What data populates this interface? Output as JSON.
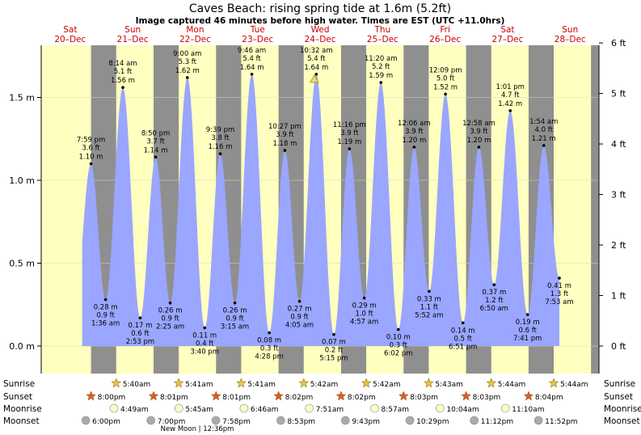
{
  "title": "Caves Beach: rising  spring tide at 1.6m (5.2ft)",
  "subtitle": "Image captured 46 minutes before high water. Times are EST (UTC +11.0hrs)",
  "chart_data": {
    "type": "line",
    "x_axis": "time (EST)",
    "y_axis_left": {
      "unit": "m",
      "ticks": [
        0.0,
        0.5,
        1.0,
        1.5
      ],
      "tick_labels": [
        "0.0 m",
        "0.5 m",
        "1.0 m",
        "1.5 m"
      ],
      "range": [
        -0.1,
        1.8
      ]
    },
    "y_axis_right": {
      "unit": "ft",
      "ticks": [
        0,
        1,
        2,
        3,
        4,
        5,
        6
      ],
      "tick_labels": [
        "0 ft",
        "1 ft",
        "2 ft",
        "3 ft",
        "4 ft",
        "5 ft",
        "6 ft"
      ]
    },
    "days": [
      {
        "dow": "Sat",
        "date": "20–Dec"
      },
      {
        "dow": "Sun",
        "date": "21–Dec"
      },
      {
        "dow": "Mon",
        "date": "22–Dec"
      },
      {
        "dow": "Tue",
        "date": "23–Dec"
      },
      {
        "dow": "Wed",
        "date": "24–Dec"
      },
      {
        "dow": "Thu",
        "date": "25–Dec"
      },
      {
        "dow": "Fri",
        "date": "26–Dec"
      },
      {
        "dow": "Sat",
        "date": "27–Dec"
      },
      {
        "dow": "Sun",
        "date": "28–Dec"
      }
    ],
    "tides": [
      {
        "type": "high",
        "time": "7:59 pm",
        "ft": "3.6 ft",
        "m": 1.1,
        "m_label": "1.10 m"
      },
      {
        "type": "low",
        "time": "1:36 am",
        "ft": "0.9 ft",
        "m": 0.28,
        "m_label": "0.28 m"
      },
      {
        "type": "high",
        "time": "8:14 am",
        "ft": "5.1 ft",
        "m": 1.56,
        "m_label": "1.56 m"
      },
      {
        "type": "low",
        "time": "2:53 pm",
        "ft": "0.6 ft",
        "m": 0.17,
        "m_label": "0.17 m"
      },
      {
        "type": "high",
        "time": "8:50 pm",
        "ft": "3.7 ft",
        "m": 1.14,
        "m_label": "1.14 m"
      },
      {
        "type": "low",
        "time": "2:25 am",
        "ft": "0.9 ft",
        "m": 0.26,
        "m_label": "0.26 m"
      },
      {
        "type": "high",
        "time": "9:00 am",
        "ft": "5.3 ft",
        "m": 1.62,
        "m_label": "1.62 m"
      },
      {
        "type": "low",
        "time": "3:40 pm",
        "ft": "0.4 ft",
        "m": 0.11,
        "m_label": "0.11 m"
      },
      {
        "type": "high",
        "time": "9:39 pm",
        "ft": "3.8 ft",
        "m": 1.16,
        "m_label": "1.16 m"
      },
      {
        "type": "low",
        "time": "3:15 am",
        "ft": "0.9 ft",
        "m": 0.26,
        "m_label": "0.26 m"
      },
      {
        "type": "high",
        "time": "9:46 am",
        "ft": "5.4 ft",
        "m": 1.64,
        "m_label": "1.64 m"
      },
      {
        "type": "low",
        "time": "4:28 pm",
        "ft": "0.3 ft",
        "m": 0.08,
        "m_label": "0.08 m"
      },
      {
        "type": "high",
        "time": "10:27 pm",
        "ft": "3.9 ft",
        "m": 1.18,
        "m_label": "1.18 m"
      },
      {
        "type": "low",
        "time": "4:05 am",
        "ft": "0.9 ft",
        "m": 0.27,
        "m_label": "0.27 m"
      },
      {
        "type": "high",
        "time": "10:32 am",
        "ft": "5.4 ft",
        "m": 1.64,
        "m_label": "1.64 m"
      },
      {
        "type": "low",
        "time": "5:15 pm",
        "ft": "0.2 ft",
        "m": 0.07,
        "m_label": "0.07 m"
      },
      {
        "type": "high",
        "time": "11:16 pm",
        "ft": "3.9 ft",
        "m": 1.19,
        "m_label": "1.19 m"
      },
      {
        "type": "low",
        "time": "4:57 am",
        "ft": "1.0 ft",
        "m": 0.29,
        "m_label": "0.29 m"
      },
      {
        "type": "high",
        "time": "11:20 am",
        "ft": "5.2 ft",
        "m": 1.59,
        "m_label": "1.59 m"
      },
      {
        "type": "low",
        "time": "6:02 pm",
        "ft": "0.3 ft",
        "m": 0.1,
        "m_label": "0.10 m"
      },
      {
        "type": "high",
        "time": "12:06 am",
        "ft": "3.9 ft",
        "m": 1.2,
        "m_label": "1.20 m"
      },
      {
        "type": "low",
        "time": "5:52 am",
        "ft": "1.1 ft",
        "m": 0.33,
        "m_label": "0.33 m"
      },
      {
        "type": "high",
        "time": "12:09 pm",
        "ft": "5.0 ft",
        "m": 1.52,
        "m_label": "1.52 m"
      },
      {
        "type": "low",
        "time": "6:51 pm",
        "ft": "0.5 ft",
        "m": 0.14,
        "m_label": "0.14 m"
      },
      {
        "type": "high",
        "time": "12:58 am",
        "ft": "3.9 ft",
        "m": 1.2,
        "m_label": "1.20 m"
      },
      {
        "type": "low",
        "time": "6:50 am",
        "ft": "1.2 ft",
        "m": 0.37,
        "m_label": "0.37 m"
      },
      {
        "type": "high",
        "time": "1:01 pm",
        "ft": "4.7 ft",
        "m": 1.42,
        "m_label": "1.42 m"
      },
      {
        "type": "low",
        "time": "7:41 pm",
        "ft": "0.6 ft",
        "m": 0.19,
        "m_label": "0.19 m"
      },
      {
        "type": "high",
        "time": "1:54 am",
        "ft": "4.0 ft",
        "m": 1.21,
        "m_label": "1.21 m"
      },
      {
        "type": "low",
        "time": "7:53 am",
        "ft": "1.3 ft",
        "m": 0.41,
        "m_label": "0.41 m"
      }
    ],
    "sunrise": [
      "5:40am",
      "5:41am",
      "5:41am",
      "5:42am",
      "5:42am",
      "5:43am",
      "5:44am",
      "5:44am"
    ],
    "sunset": [
      "8:00pm",
      "8:01pm",
      "8:01pm",
      "8:02pm",
      "8:02pm",
      "8:03pm",
      "8:03pm",
      "8:04pm"
    ],
    "moonrise": [
      "4:49am",
      "5:45am",
      "6:46am",
      "7:51am",
      "8:57am",
      "10:04am",
      "11:10am"
    ],
    "moonset": [
      "6:00pm",
      "7:00pm",
      "7:58pm",
      "8:53pm",
      "9:43pm",
      "10:29pm",
      "11:12pm",
      "11:52pm"
    ],
    "moon_phase": "New Moon | 12:36pm",
    "row_labels": {
      "sunrise": "Sunrise",
      "sunset": "Sunset",
      "moonrise": "Moonrise",
      "moonset": "Moonset"
    },
    "colors": {
      "water": "#9aa6ff",
      "day": "#ffffc0",
      "night": "#8f8f8f",
      "day_label": "#cc0000",
      "star": "#e6c33b",
      "sunset_star": "#e05b2b",
      "moon": "#fdfbc8",
      "moonset": "#aaaaaa"
    }
  }
}
